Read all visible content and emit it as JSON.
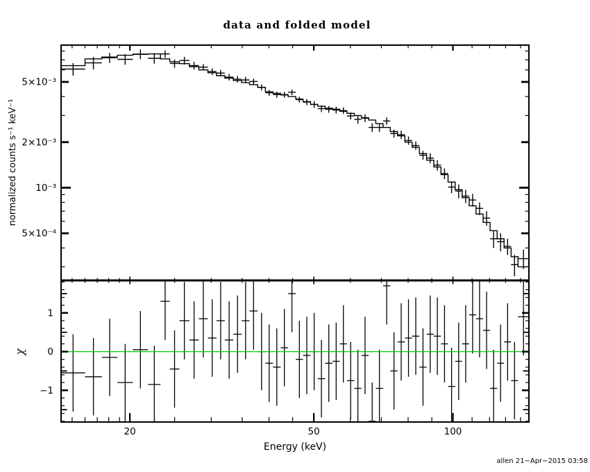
{
  "page": {
    "title": "data and folded model",
    "signature": "allen 21−Apr−2015 03:58"
  },
  "chart_data": [
    {
      "type": "line",
      "subtype": "histogram-step-with-errorbar-data",
      "title": "data and folded model",
      "xlabel": "Energy (keV)",
      "ylabel": "normalized counts s⁻¹ keV⁻¹",
      "xscale": "log",
      "yscale": "log",
      "xlim": [
        14.2,
        146
      ],
      "ylim": [
        0.000244,
        0.00875
      ],
      "grid": false,
      "legend": "none",
      "x_ticks": {
        "major": [
          20,
          50,
          100
        ],
        "labels": [
          "20",
          "50",
          "100"
        ],
        "minor": [
          15,
          16,
          17,
          18,
          19,
          25,
          30,
          35,
          40,
          45,
          60,
          70,
          80,
          90,
          110,
          120,
          130,
          140
        ]
      },
      "y_ticks": {
        "major": [
          0.005,
          0.002,
          0.001,
          0.0005
        ],
        "labels": [
          "5×10⁻³",
          "2×10⁻³",
          "10⁻³",
          "5×10⁻⁴"
        ],
        "decade": [
          0.001
        ],
        "minor": [
          0.008,
          0.007,
          0.006,
          0.004,
          0.003,
          0.0009,
          0.0008,
          0.0007,
          0.0006,
          0.0004,
          0.0003
        ]
      },
      "bin_edges": [
        14.2,
        16.0,
        17.4,
        18.8,
        20.3,
        21.9,
        23.3,
        24.4,
        25.6,
        26.9,
        28.2,
        29.5,
        30.8,
        32.1,
        33.5,
        34.9,
        36.3,
        37.8,
        39.3,
        40.8,
        42.4,
        44.0,
        45.7,
        47.4,
        49.2,
        51.0,
        52.9,
        54.9,
        56.9,
        59.0,
        61.2,
        63.4,
        65.7,
        68.1,
        70.6,
        73.2,
        75.9,
        78.7,
        81.6,
        84.6,
        87.7,
        90.9,
        94.2,
        97.6,
        101.1,
        104.7,
        108.4,
        112.2,
        116.2,
        120.3,
        124.6,
        129.0,
        133.6,
        138.3,
        146.0
      ],
      "series": [
        {
          "name": "folded model",
          "style": "histogram-step",
          "color": "#000000",
          "values": [
            0.0064,
            0.0071,
            0.0073,
            0.0075,
            0.0076,
            0.00765,
            0.0071,
            0.0068,
            0.0066,
            0.0063,
            0.006,
            0.00575,
            0.0055,
            0.0053,
            0.0051,
            0.00495,
            0.0048,
            0.0046,
            0.0043,
            0.0042,
            0.0041,
            0.004,
            0.00385,
            0.0037,
            0.00355,
            0.00345,
            0.00335,
            0.0033,
            0.0032,
            0.0031,
            0.003,
            0.0029,
            0.0028,
            0.00265,
            0.0025,
            0.00235,
            0.0022,
            0.002,
            0.00185,
            0.00168,
            0.00152,
            0.00137,
            0.00122,
            0.00109,
            0.00097,
            0.00086,
            0.00076,
            0.00067,
            0.00059,
            0.00052,
            0.00046,
            0.0004,
            0.00035,
            0.0003
          ]
        },
        {
          "name": "data",
          "style": "cross-errorbar",
          "color": "#000000",
          "values": [
            0.00608,
            0.00668,
            0.00722,
            0.00705,
            0.00763,
            0.00716,
            0.00765,
            0.00662,
            0.00692,
            0.00641,
            0.00626,
            0.00585,
            0.00572,
            0.00538,
            0.00521,
            0.00515,
            0.00503,
            0.0046,
            0.00424,
            0.00412,
            0.00412,
            0.00427,
            0.00382,
            0.00368,
            0.00355,
            0.00333,
            0.0033,
            0.00326,
            0.00323,
            0.00298,
            0.00283,
            0.00288,
            0.0025,
            0.0025,
            0.00276,
            0.00228,
            0.00224,
            0.00205,
            0.0019,
            0.00164,
            0.00157,
            0.00141,
            0.00124,
            0.00101,
            0.00095,
            0.00088,
            0.00083,
            0.00073,
            0.00063,
            0.00046,
            0.00044,
            0.00041,
            0.00031,
            0.00034
          ],
          "yerr": [
            0.00058,
            0.00064,
            0.00055,
            0.00056,
            0.00057,
            0.00057,
            0.00043,
            0.00041,
            0.0004,
            0.00038,
            0.0003,
            0.00029,
            0.00028,
            0.00027,
            0.00026,
            0.00025,
            0.00022,
            0.00021,
            0.00019,
            0.00019,
            0.00018,
            0.00018,
            0.00017,
            0.00017,
            0.00018,
            0.00017,
            0.00017,
            0.00017,
            0.00016,
            0.00016,
            0.00018,
            0.00017,
            0.00017,
            0.00016,
            0.00015,
            0.00014,
            0.00014,
            0.00013,
            0.00012,
            0.00011,
            0.00012,
            0.00011,
            0.0001,
            9e-05,
            0.0001,
            9e-05,
            8e-05,
            7e-05,
            7e-05,
            6e-05,
            6e-05,
            5e-05,
            5e-05,
            5e-05
          ]
        }
      ]
    },
    {
      "type": "scatter",
      "subtype": "residuals-with-errorbars",
      "xlabel": "Energy (keV)",
      "ylabel": "χ",
      "xscale": "log",
      "yscale": "linear",
      "xlim": [
        14.2,
        146
      ],
      "ylim": [
        -1.82,
        1.84
      ],
      "grid": false,
      "y_ticks": {
        "major": [
          -1,
          0,
          1
        ],
        "labels": [
          "−1",
          "0",
          "1"
        ],
        "half": [
          -1.5,
          -0.5,
          0.5,
          1.5
        ],
        "minor": [
          -1.8,
          -1.6,
          -1.4,
          -1.2,
          -0.8,
          -0.6,
          -0.4,
          -0.2,
          0.2,
          0.4,
          0.6,
          0.8,
          1.2,
          1.4,
          1.6,
          1.8
        ]
      },
      "series": [
        {
          "name": "chi residuals",
          "style": "cross-errorbar",
          "color": "#000000",
          "values": [
            -0.55,
            -0.65,
            -0.15,
            -0.8,
            0.05,
            -0.85,
            1.3,
            -0.45,
            0.8,
            0.3,
            0.85,
            0.35,
            0.8,
            0.3,
            0.45,
            0.8,
            1.05,
            0.0,
            -0.3,
            -0.4,
            0.1,
            1.5,
            -0.2,
            -0.1,
            0.0,
            -0.7,
            -0.3,
            -0.25,
            0.2,
            -0.75,
            -0.95,
            -0.1,
            -1.8,
            -0.95,
            1.7,
            -0.5,
            0.25,
            0.35,
            0.4,
            -0.4,
            0.45,
            0.4,
            0.2,
            -0.9,
            -0.25,
            0.2,
            0.95,
            0.85,
            0.55,
            -0.95,
            -0.3,
            0.25,
            -0.75,
            0.9
          ],
          "yerr": 1.0
        },
        {
          "name": "zero line",
          "style": "hline",
          "y": 0,
          "color": "#00cc00"
        }
      ]
    }
  ]
}
